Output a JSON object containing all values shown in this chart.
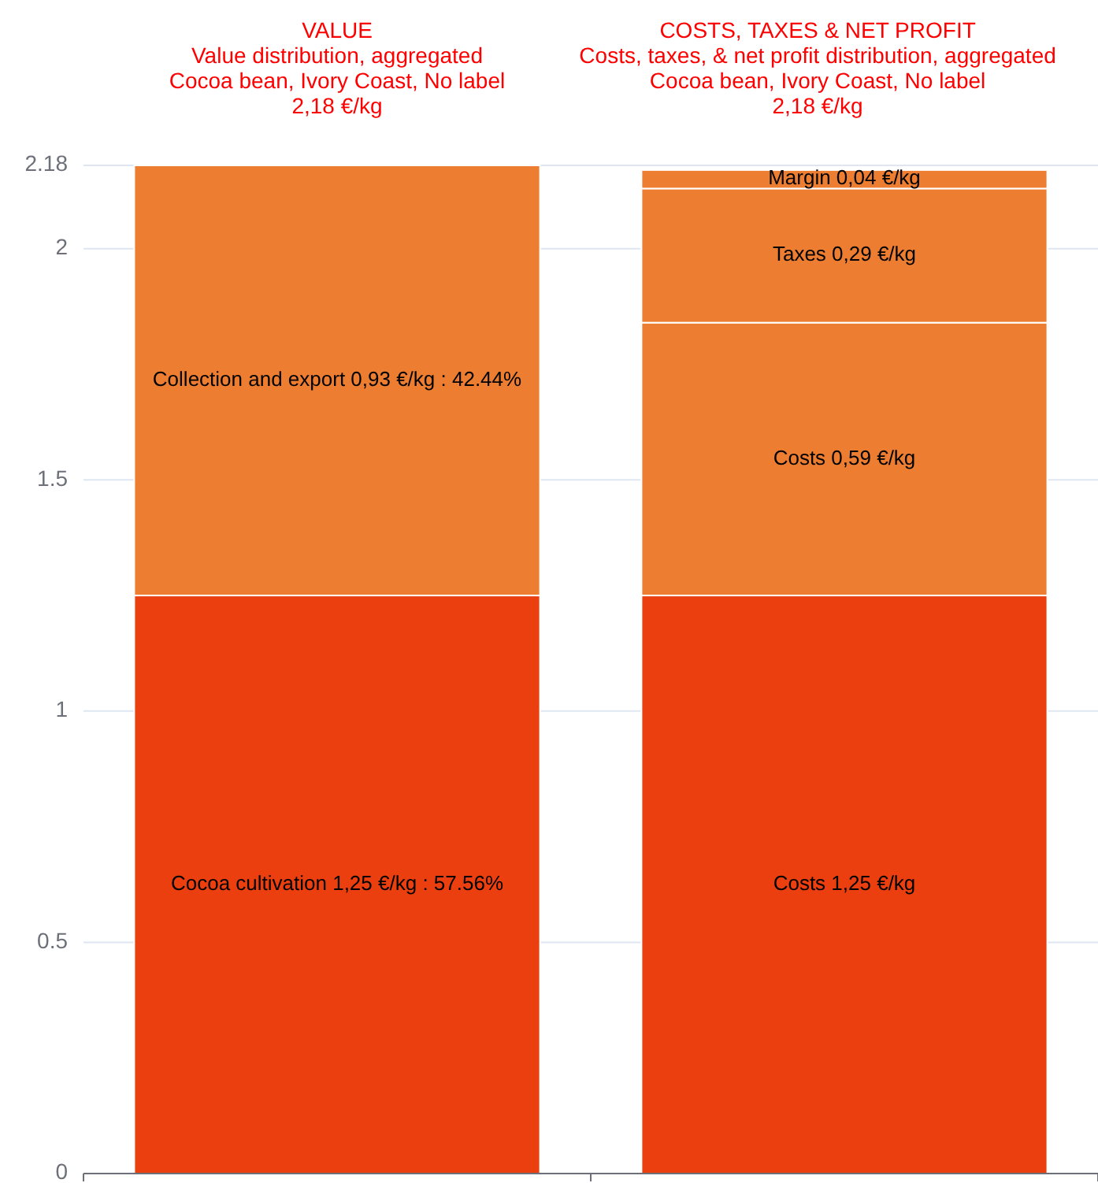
{
  "chart_data": {
    "type": "bar",
    "stacked": true,
    "categories": [
      null,
      null
    ],
    "annotations": [
      "VALUE\nValue distribution, aggregated\nCocoa bean, Ivory Coast, No label\n2,18 €/kg",
      "COSTS, TAXES & NET PROFIT\nCosts, taxes, & net profit distribution, aggregated\nCocoa bean, Ivory Coast, No label\n2,18 €/kg"
    ],
    "series": [
      {
        "color": "#eb3f10",
        "values": [
          1.25,
          1.25
        ],
        "value_labels": [
          "Cocoa cultivation 1,25 €/kg : 57.56%",
          "Costs 1,25 €/kg"
        ]
      },
      {
        "color": "#ed7d31",
        "values": [
          0.93,
          0.59
        ],
        "value_labels": [
          "Collection and export 0,93 €/kg : 42.44%",
          "Costs 0,59 €/kg"
        ]
      },
      {
        "color": "#ed7d31",
        "values": [
          null,
          0.29
        ],
        "value_labels": [
          null,
          "Taxes 0,29 €/kg"
        ]
      },
      {
        "color": "#ed7d31",
        "values": [
          null,
          0.04
        ],
        "value_labels": [
          null,
          "Margin 0,04 €/kg"
        ]
      }
    ],
    "ylim": [
      0,
      2.18
    ],
    "yticks": [
      0,
      0.5,
      1,
      1.5,
      2,
      2.18
    ],
    "grid": "y"
  }
}
